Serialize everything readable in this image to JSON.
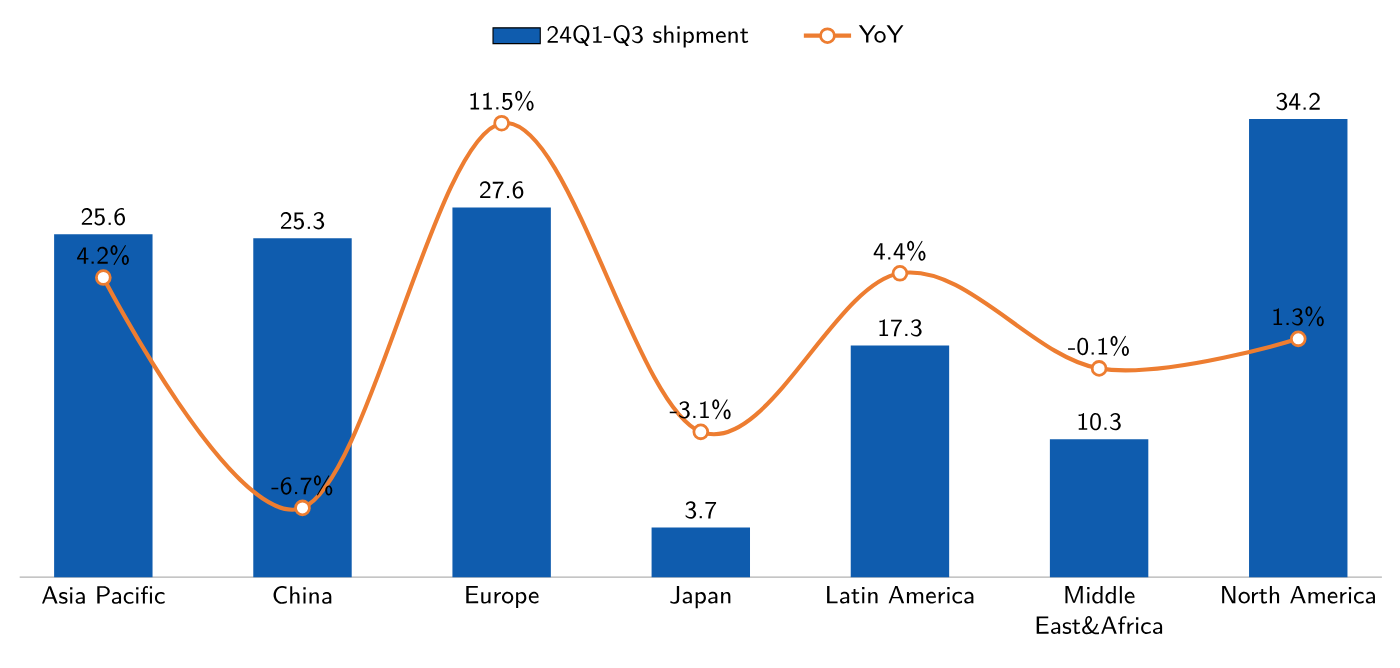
{
  "chart_data": {
    "type": "bar",
    "categories": [
      "Asia Pacific",
      "China",
      "Europe",
      "Japan",
      "Latin America",
      "Middle East&Africa",
      "North America"
    ],
    "series": [
      {
        "name": "24Q1-Q3 shipment",
        "color": "#0f5cae",
        "values": [
          25.6,
          25.3,
          27.6,
          3.7,
          17.3,
          10.3,
          34.2
        ],
        "value_labels": [
          "25.6",
          "25.3",
          "27.6",
          "3.7",
          "17.3",
          "10.3",
          "34.2"
        ]
      },
      {
        "name": "YoY",
        "type": "line",
        "axis": "y2",
        "color": "#ed7d31",
        "values": [
          4.2,
          -6.7,
          11.5,
          -3.1,
          4.4,
          -0.1,
          1.3
        ],
        "value_labels": [
          "4.2%",
          "-6.7%",
          "11.5%",
          "-3.1%",
          "4.4%",
          "-0.1%",
          "1.3%"
        ]
      }
    ],
    "tick_labels": "x",
    "legend": "top",
    "marker": "circle"
  }
}
